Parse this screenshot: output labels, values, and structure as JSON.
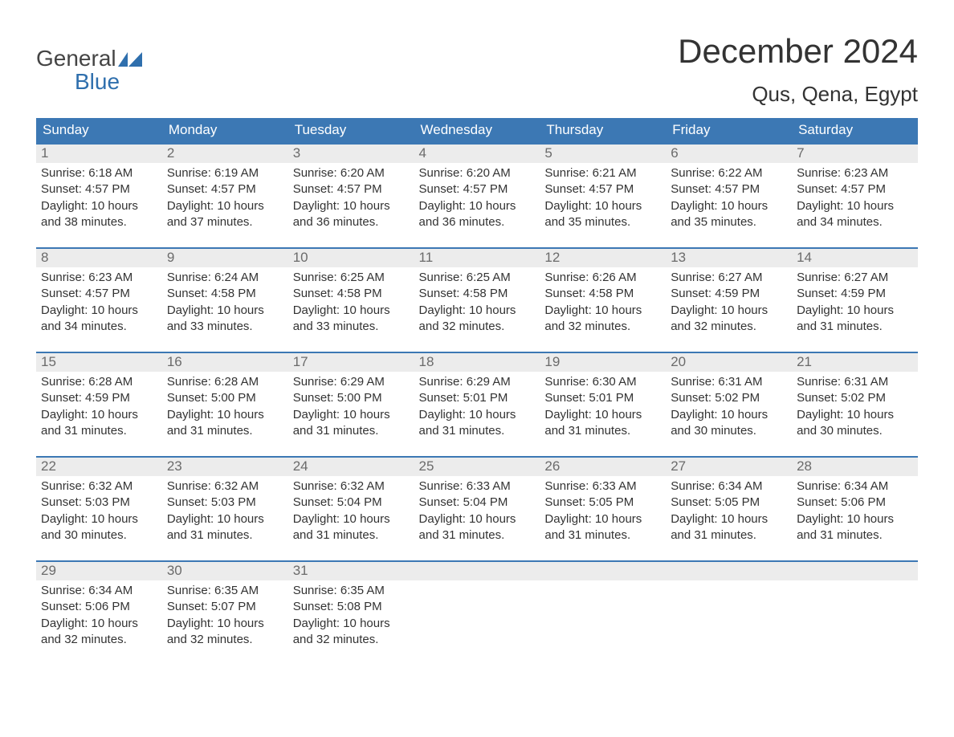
{
  "brand": {
    "line1": "General",
    "line2": "Blue"
  },
  "title": "December 2024",
  "location": "Qus, Qena, Egypt",
  "colors": {
    "header_bg": "#3c78b4",
    "header_text": "#ffffff",
    "row_stripe": "#ececec",
    "row_border": "#3c78b4",
    "body_text": "#333333",
    "daynum_text": "#6b6b6b",
    "brand_blue": "#2f6fad",
    "page_bg": "#ffffff"
  },
  "weekdays": [
    "Sunday",
    "Monday",
    "Tuesday",
    "Wednesday",
    "Thursday",
    "Friday",
    "Saturday"
  ],
  "weeks": [
    [
      {
        "n": "1",
        "sunrise": "6:18 AM",
        "sunset": "4:57 PM",
        "dayh": "10",
        "daym": "38"
      },
      {
        "n": "2",
        "sunrise": "6:19 AM",
        "sunset": "4:57 PM",
        "dayh": "10",
        "daym": "37"
      },
      {
        "n": "3",
        "sunrise": "6:20 AM",
        "sunset": "4:57 PM",
        "dayh": "10",
        "daym": "36"
      },
      {
        "n": "4",
        "sunrise": "6:20 AM",
        "sunset": "4:57 PM",
        "dayh": "10",
        "daym": "36"
      },
      {
        "n": "5",
        "sunrise": "6:21 AM",
        "sunset": "4:57 PM",
        "dayh": "10",
        "daym": "35"
      },
      {
        "n": "6",
        "sunrise": "6:22 AM",
        "sunset": "4:57 PM",
        "dayh": "10",
        "daym": "35"
      },
      {
        "n": "7",
        "sunrise": "6:23 AM",
        "sunset": "4:57 PM",
        "dayh": "10",
        "daym": "34"
      }
    ],
    [
      {
        "n": "8",
        "sunrise": "6:23 AM",
        "sunset": "4:57 PM",
        "dayh": "10",
        "daym": "34"
      },
      {
        "n": "9",
        "sunrise": "6:24 AM",
        "sunset": "4:58 PM",
        "dayh": "10",
        "daym": "33"
      },
      {
        "n": "10",
        "sunrise": "6:25 AM",
        "sunset": "4:58 PM",
        "dayh": "10",
        "daym": "33"
      },
      {
        "n": "11",
        "sunrise": "6:25 AM",
        "sunset": "4:58 PM",
        "dayh": "10",
        "daym": "32"
      },
      {
        "n": "12",
        "sunrise": "6:26 AM",
        "sunset": "4:58 PM",
        "dayh": "10",
        "daym": "32"
      },
      {
        "n": "13",
        "sunrise": "6:27 AM",
        "sunset": "4:59 PM",
        "dayh": "10",
        "daym": "32"
      },
      {
        "n": "14",
        "sunrise": "6:27 AM",
        "sunset": "4:59 PM",
        "dayh": "10",
        "daym": "31"
      }
    ],
    [
      {
        "n": "15",
        "sunrise": "6:28 AM",
        "sunset": "4:59 PM",
        "dayh": "10",
        "daym": "31"
      },
      {
        "n": "16",
        "sunrise": "6:28 AM",
        "sunset": "5:00 PM",
        "dayh": "10",
        "daym": "31"
      },
      {
        "n": "17",
        "sunrise": "6:29 AM",
        "sunset": "5:00 PM",
        "dayh": "10",
        "daym": "31"
      },
      {
        "n": "18",
        "sunrise": "6:29 AM",
        "sunset": "5:01 PM",
        "dayh": "10",
        "daym": "31"
      },
      {
        "n": "19",
        "sunrise": "6:30 AM",
        "sunset": "5:01 PM",
        "dayh": "10",
        "daym": "31"
      },
      {
        "n": "20",
        "sunrise": "6:31 AM",
        "sunset": "5:02 PM",
        "dayh": "10",
        "daym": "30"
      },
      {
        "n": "21",
        "sunrise": "6:31 AM",
        "sunset": "5:02 PM",
        "dayh": "10",
        "daym": "30"
      }
    ],
    [
      {
        "n": "22",
        "sunrise": "6:32 AM",
        "sunset": "5:03 PM",
        "dayh": "10",
        "daym": "30"
      },
      {
        "n": "23",
        "sunrise": "6:32 AM",
        "sunset": "5:03 PM",
        "dayh": "10",
        "daym": "31"
      },
      {
        "n": "24",
        "sunrise": "6:32 AM",
        "sunset": "5:04 PM",
        "dayh": "10",
        "daym": "31"
      },
      {
        "n": "25",
        "sunrise": "6:33 AM",
        "sunset": "5:04 PM",
        "dayh": "10",
        "daym": "31"
      },
      {
        "n": "26",
        "sunrise": "6:33 AM",
        "sunset": "5:05 PM",
        "dayh": "10",
        "daym": "31"
      },
      {
        "n": "27",
        "sunrise": "6:34 AM",
        "sunset": "5:05 PM",
        "dayh": "10",
        "daym": "31"
      },
      {
        "n": "28",
        "sunrise": "6:34 AM",
        "sunset": "5:06 PM",
        "dayh": "10",
        "daym": "31"
      }
    ],
    [
      {
        "n": "29",
        "sunrise": "6:34 AM",
        "sunset": "5:06 PM",
        "dayh": "10",
        "daym": "32"
      },
      {
        "n": "30",
        "sunrise": "6:35 AM",
        "sunset": "5:07 PM",
        "dayh": "10",
        "daym": "32"
      },
      {
        "n": "31",
        "sunrise": "6:35 AM",
        "sunset": "5:08 PM",
        "dayh": "10",
        "daym": "32"
      },
      null,
      null,
      null,
      null
    ]
  ],
  "labels": {
    "sunrise": "Sunrise: ",
    "sunset": "Sunset: ",
    "daylight1": "Daylight: ",
    "hours_and": " hours and ",
    "minutes": " minutes."
  }
}
